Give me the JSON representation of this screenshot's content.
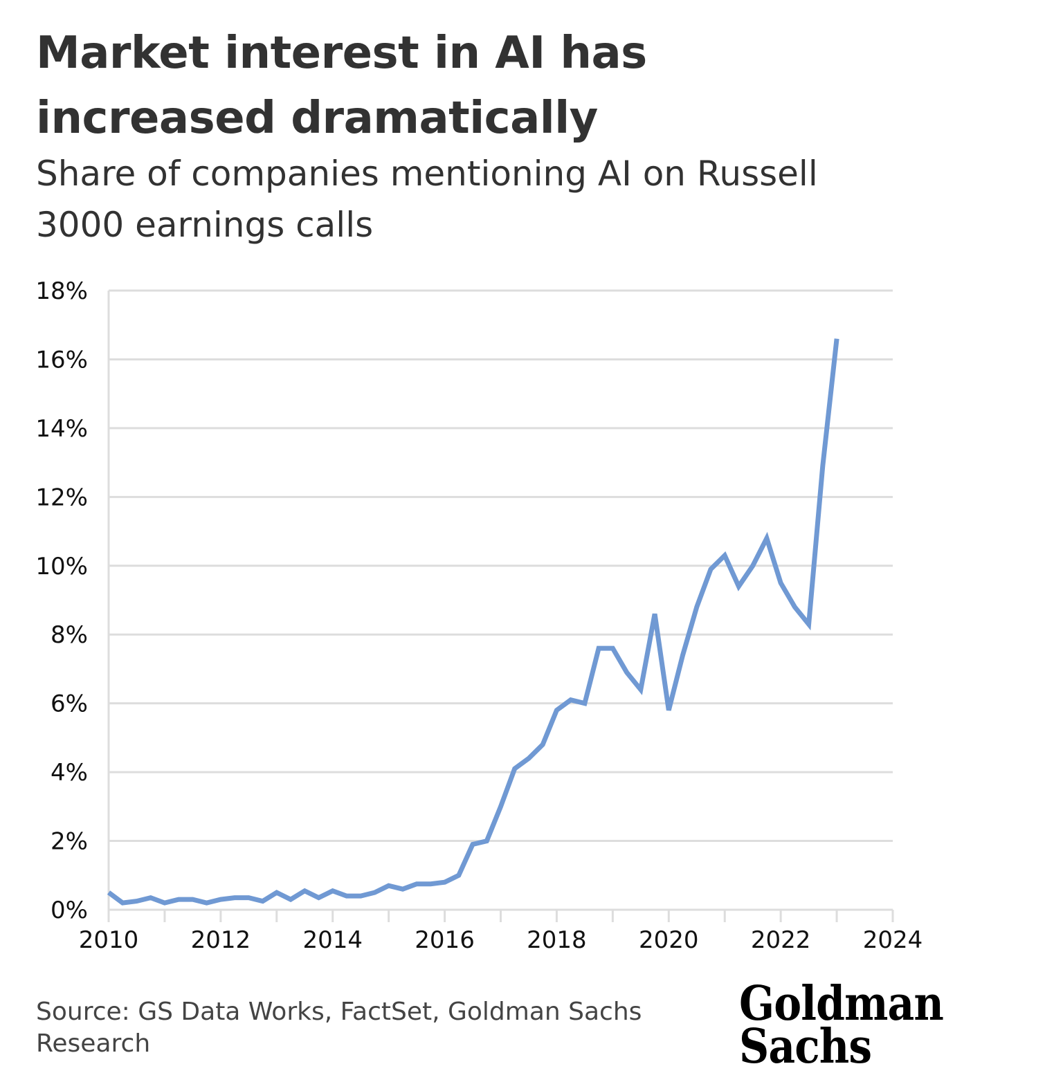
{
  "header": {
    "title": "Market interest in AI has increased dramatically",
    "subtitle": "Share of companies mentioning AI on Russell 3000 earnings calls"
  },
  "footer": {
    "source": "Source: GS Data Works, FactSet, Goldman Sachs Research",
    "logo_line1": "Goldman",
    "logo_line2": "Sachs"
  },
  "colors": {
    "line": "#7099d3",
    "grid": "#dddddd",
    "text": "#333333"
  },
  "chart_data": {
    "type": "line",
    "title": "Market interest in AI has increased dramatically",
    "subtitle": "Share of companies mentioning AI on Russell 3000 earnings calls",
    "xlabel": "",
    "ylabel": "",
    "xlim": [
      2010,
      2024
    ],
    "ylim": [
      0,
      18
    ],
    "grid": true,
    "legend": "none",
    "x_ticks": [
      "2010",
      "2012",
      "2014",
      "2016",
      "2018",
      "2020",
      "2022",
      "2024"
    ],
    "y_ticks": [
      "0%",
      "2%",
      "4%",
      "6%",
      "8%",
      "10%",
      "12%",
      "14%",
      "16%",
      "18%"
    ],
    "series": [
      {
        "x": [
          2010.0,
          2010.25,
          2010.5,
          2010.75,
          2011.0,
          2011.25,
          2011.5,
          2011.75,
          2012.0,
          2012.25,
          2012.5,
          2012.75,
          2013.0,
          2013.25,
          2013.5,
          2013.75,
          2014.0,
          2014.25,
          2014.5,
          2014.75,
          2015.0,
          2015.25,
          2015.5,
          2015.75,
          2016.0,
          2016.25,
          2016.5,
          2016.75,
          2017.0,
          2017.25,
          2017.5,
          2017.75,
          2018.0,
          2018.25,
          2018.5,
          2018.75,
          2019.0,
          2019.25,
          2019.5,
          2019.75,
          2020.0,
          2020.25,
          2020.5,
          2020.75,
          2021.0,
          2021.25,
          2021.5,
          2021.75,
          2022.0,
          2022.25,
          2022.5,
          2022.75,
          2023.0
        ],
        "values": [
          0.5,
          0.2,
          0.25,
          0.35,
          0.2,
          0.3,
          0.3,
          0.2,
          0.3,
          0.35,
          0.35,
          0.25,
          0.5,
          0.3,
          0.55,
          0.35,
          0.55,
          0.4,
          0.4,
          0.5,
          0.7,
          0.6,
          0.75,
          0.75,
          0.8,
          1.0,
          1.9,
          2.0,
          3.0,
          4.1,
          4.4,
          4.8,
          5.8,
          6.1,
          6.0,
          7.6,
          7.6,
          6.9,
          6.4,
          8.6,
          5.8,
          7.4,
          8.8,
          9.9,
          10.3,
          9.4,
          10.0,
          10.8,
          9.5,
          8.8,
          8.3,
          12.9,
          16.6
        ]
      }
    ]
  }
}
